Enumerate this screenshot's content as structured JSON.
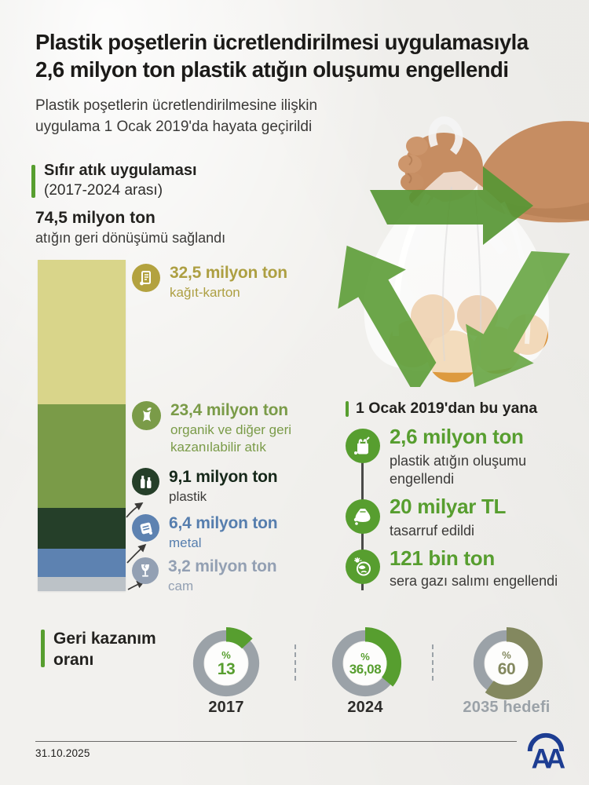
{
  "page": {
    "background": "#f2f1ee",
    "accent_green": "#579e2f",
    "paper_style": "crumpled-paper"
  },
  "header": {
    "title_line1": "Plastik poşetlerin ücretlendirilmesi uygulamasıyla",
    "title_line2": "2,6 milyon ton plastik atığın oluşumu engellendi",
    "subtitle_line1": "Plastik poşetlerin ücretlendirilmesine ilişkin",
    "subtitle_line2": "uygulama 1 Ocak 2019'da hayata geçirildi"
  },
  "zero_waste": {
    "heading": "Sıfır atık uygulaması",
    "period": "(2017-2024 arası)",
    "total_value": "74,5 milyon ton",
    "total_desc": "atığın geri dönüşümü sağlandı"
  },
  "photo": {
    "description": "hand holding transparent plastic bag with oranges, green recycling arrows overlay",
    "icon": "recycle-arrows-icon"
  },
  "since_2019": {
    "heading": "1 Ocak 2019'dan bu yana",
    "items": [
      {
        "icon": "plastic-bag-icon",
        "value": "2,6 milyon ton",
        "desc": "plastik atığın oluşumu engellendi"
      },
      {
        "icon": "money-bag-icon",
        "value": "20 milyar TL",
        "desc": "tasarruf edildi"
      },
      {
        "icon": "globe-emission-icon",
        "value": "121 bin ton",
        "desc": "sera gazı salımı engellendi"
      }
    ]
  },
  "recovery": {
    "heading": "Geri kazanım oranı"
  },
  "footer": {
    "date": "31.10.2025",
    "logo_text": "AA"
  },
  "chart_data": [
    {
      "type": "bar",
      "stacked": true,
      "title": "Sıfır atık uygulaması (2017-2024 arası)",
      "unit": "milyon ton",
      "total": 74.5,
      "total_label": "74,5 milyon ton atığın geri dönüşümü sağlandı",
      "segments": [
        {
          "label": "kağıt-karton",
          "value": 32.5,
          "value_text": "32,5 milyon ton",
          "color": "#d9d58a",
          "text_color": "#ad9f42",
          "icon": "paper-scroll-icon",
          "icon_bg": "#b3a23f"
        },
        {
          "label": "organik ve diğer geri kazanılabilir atık",
          "value": 23.4,
          "value_text": "23,4 milyon ton",
          "color": "#7a9b48",
          "text_color": "#7a9b48",
          "icon": "apple-core-icon",
          "icon_bg": "#7a9b48"
        },
        {
          "label": "plastik",
          "value": 9.1,
          "value_text": "9,1 milyon ton",
          "color": "#253f29",
          "text_color": "#16281a",
          "label_color": "#3b3a38",
          "icon": "plastic-bottles-icon",
          "icon_bg": "#253f29"
        },
        {
          "label": "metal",
          "value": 6.4,
          "value_text": "6,4 milyon ton",
          "color": "#5d82b1",
          "text_color": "#567eae",
          "icon": "crushed-can-icon",
          "icon_bg": "#5d82b1"
        },
        {
          "label": "cam",
          "value": 3.2,
          "value_text": "3,2 milyon ton",
          "color": "#bcc2c7",
          "text_color": "#93a0b3",
          "icon": "glass-icon",
          "icon_bg": "#93a0b3"
        }
      ]
    },
    {
      "type": "pie",
      "variant": "donut",
      "title": "Geri kazanım oranı",
      "ring_color": "#9ba2a8",
      "percent_prefix": "%",
      "slices": [
        {
          "label": "2017",
          "value": 13,
          "value_text": "13",
          "color": "#579e2f",
          "label_color": "#2d2c2a"
        },
        {
          "label": "2024",
          "value": 36.08,
          "value_text": "36,08",
          "color": "#579e2f",
          "label_color": "#2d2c2a"
        },
        {
          "label": "2035 hedefi",
          "value": 60,
          "value_text": "60",
          "color": "#83885f",
          "label_color": "#9ba2a8"
        }
      ]
    }
  ]
}
